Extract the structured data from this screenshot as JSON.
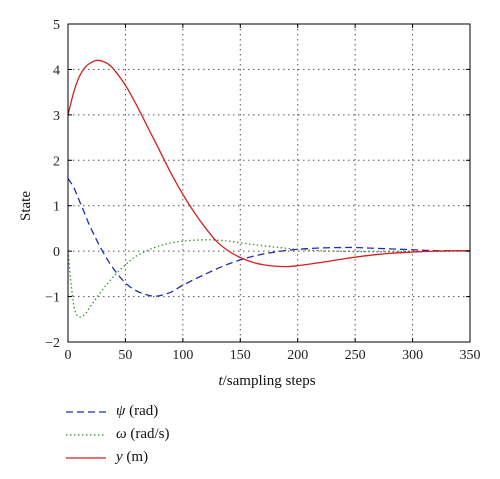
{
  "chart_data": {
    "type": "line",
    "title": "",
    "ylabel": "State",
    "xlabel": {
      "var": "t",
      "rest": "/sampling steps"
    },
    "xlim": [
      0,
      350
    ],
    "ylim": [
      -2,
      5
    ],
    "xticks": [
      0,
      50,
      100,
      150,
      200,
      250,
      300,
      350
    ],
    "yticks": [
      -2,
      -1,
      0,
      1,
      2,
      3,
      4,
      5
    ],
    "grid": true,
    "legend_position": "below",
    "series": [
      {
        "name": "ψ (rad)",
        "symbol": "ψ",
        "unit": "(rad)",
        "color": "#1f2fb4",
        "style": "dashed",
        "x": [
          0,
          5,
          10,
          15,
          20,
          30,
          40,
          50,
          60,
          70,
          75,
          80,
          90,
          100,
          120,
          140,
          160,
          180,
          200,
          220,
          240,
          250,
          260,
          280,
          300,
          320,
          340,
          350
        ],
        "y": [
          1.6,
          1.4,
          1.1,
          0.8,
          0.5,
          0.0,
          -0.4,
          -0.7,
          -0.88,
          -0.97,
          -0.99,
          -0.98,
          -0.9,
          -0.75,
          -0.5,
          -0.28,
          -0.12,
          -0.02,
          0.04,
          0.07,
          0.08,
          0.08,
          0.07,
          0.05,
          0.03,
          0.01,
          0.01,
          0.01
        ]
      },
      {
        "name": "ω (rad/s)",
        "symbol": "ω",
        "unit": "(rad/s)",
        "color": "#2e9a2e",
        "style": "dotted",
        "x": [
          0,
          3,
          6,
          10,
          15,
          20,
          30,
          40,
          50,
          60,
          80,
          100,
          120,
          130,
          140,
          160,
          180,
          200,
          220,
          250,
          300,
          350
        ],
        "y": [
          0.0,
          -0.8,
          -1.3,
          -1.45,
          -1.38,
          -1.2,
          -0.85,
          -0.55,
          -0.3,
          -0.1,
          0.12,
          0.22,
          0.25,
          0.24,
          0.22,
          0.15,
          0.09,
          0.04,
          0.01,
          -0.01,
          -0.01,
          0.0
        ]
      },
      {
        "name": "y (m)",
        "symbol": "y",
        "unit": "(m)",
        "color": "#d42020",
        "style": "solid",
        "x": [
          0,
          5,
          10,
          15,
          20,
          25,
          30,
          35,
          40,
          50,
          60,
          70,
          80,
          90,
          100,
          110,
          120,
          130,
          140,
          150,
          160,
          170,
          180,
          190,
          200,
          220,
          240,
          260,
          280,
          300,
          320,
          340,
          350
        ],
        "y": [
          3.0,
          3.5,
          3.85,
          4.05,
          4.15,
          4.2,
          4.18,
          4.12,
          4.0,
          3.65,
          3.2,
          2.7,
          2.2,
          1.7,
          1.25,
          0.85,
          0.5,
          0.2,
          0.0,
          -0.14,
          -0.24,
          -0.3,
          -0.33,
          -0.34,
          -0.32,
          -0.25,
          -0.17,
          -0.1,
          -0.05,
          -0.02,
          0.0,
          0.01,
          0.01
        ]
      }
    ]
  }
}
